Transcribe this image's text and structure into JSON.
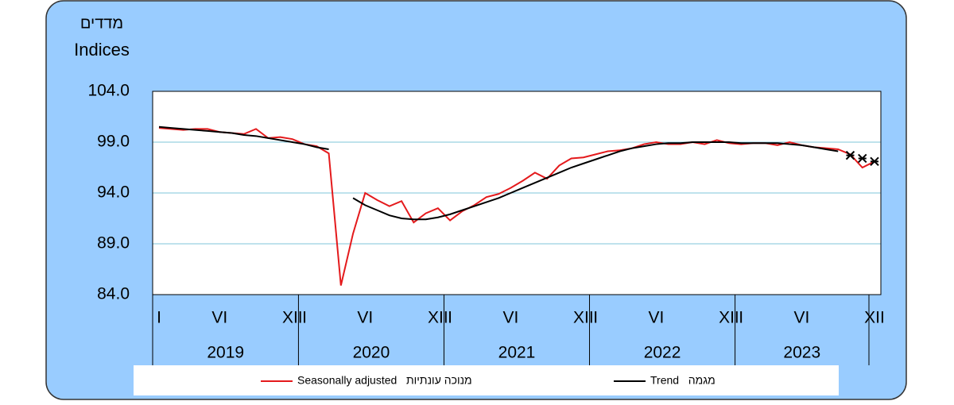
{
  "chart_data": {
    "type": "line",
    "y_label_he": "מדדים",
    "y_label": "Indices",
    "ylim": [
      84,
      104
    ],
    "yticks": [
      {
        "value": 84,
        "label": "84.0"
      },
      {
        "value": 89,
        "label": "89.0"
      },
      {
        "value": 94,
        "label": "94.0"
      },
      {
        "value": 99,
        "label": "99.0"
      },
      {
        "value": 104,
        "label": "104.0"
      }
    ],
    "grid": true,
    "categories": [
      "I",
      null,
      null,
      null,
      null,
      "VI",
      null,
      null,
      null,
      null,
      null,
      "XII",
      "I",
      null,
      null,
      null,
      null,
      "VI",
      null,
      null,
      null,
      null,
      null,
      "XII",
      "I",
      null,
      null,
      null,
      null,
      "VI",
      null,
      null,
      null,
      null,
      null,
      "XII",
      "I",
      null,
      null,
      null,
      null,
      "VI",
      null,
      null,
      null,
      null,
      null,
      "XII",
      "I",
      null,
      null,
      null,
      null,
      "VI",
      null,
      null,
      null,
      null,
      null,
      "XII"
    ],
    "years": [
      "2019",
      "2020",
      "2021",
      "2022",
      "2023"
    ],
    "series": [
      {
        "name": "Seasonally adjusted   מנוכה עונתיות",
        "color": "#e41a1c",
        "values": [
          100.4,
          100.3,
          100.2,
          100.3,
          100.3,
          100.0,
          99.9,
          99.8,
          100.3,
          99.4,
          99.5,
          99.3,
          98.8,
          98.6,
          97.9,
          84.9,
          90.0,
          94.0,
          93.3,
          92.7,
          93.2,
          91.1,
          92.0,
          92.5,
          91.3,
          92.2,
          92.8,
          93.6,
          93.9,
          94.5,
          95.2,
          96.0,
          95.4,
          96.7,
          97.4,
          97.5,
          97.8,
          98.1,
          98.2,
          98.4,
          98.8,
          99.0,
          98.8,
          98.8,
          99.0,
          98.8,
          99.2,
          98.9,
          98.8,
          98.9,
          98.9,
          98.7,
          99.0,
          98.7,
          98.5,
          98.4,
          98.3,
          97.8,
          96.5,
          97.1
        ]
      },
      {
        "name": "Trend   מגמה",
        "color": "#000000",
        "values": [
          100.5,
          100.4,
          100.3,
          100.2,
          100.1,
          100.0,
          99.9,
          99.7,
          99.6,
          99.4,
          99.2,
          99.0,
          98.8,
          98.5,
          98.3,
          null,
          93.5,
          92.8,
          92.3,
          91.8,
          91.5,
          91.4,
          91.4,
          91.6,
          91.9,
          92.3,
          92.7,
          93.1,
          93.5,
          94.0,
          94.5,
          95.0,
          95.5,
          96.0,
          96.5,
          96.9,
          97.3,
          97.7,
          98.1,
          98.4,
          98.6,
          98.8,
          98.9,
          98.9,
          99.0,
          99.0,
          99.0,
          99.0,
          98.9,
          98.9,
          98.9,
          98.9,
          98.8,
          98.7,
          98.5,
          98.3,
          98.1,
          null,
          null,
          null
        ]
      },
      {
        "color": "#000000",
        "marker": "asterisk",
        "values": [
          null,
          null,
          null,
          null,
          null,
          null,
          null,
          null,
          null,
          null,
          null,
          null,
          null,
          null,
          null,
          null,
          null,
          null,
          null,
          null,
          null,
          null,
          null,
          null,
          null,
          null,
          null,
          null,
          null,
          null,
          null,
          null,
          null,
          null,
          null,
          null,
          null,
          null,
          null,
          null,
          null,
          null,
          null,
          null,
          null,
          null,
          null,
          null,
          null,
          null,
          null,
          null,
          null,
          null,
          null,
          null,
          null,
          97.7,
          97.4,
          97.1
        ]
      }
    ]
  }
}
